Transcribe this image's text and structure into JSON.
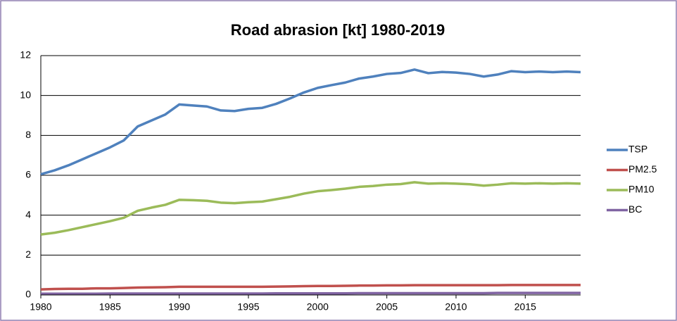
{
  "chart_data": {
    "type": "line",
    "title": "Road abrasion  [kt] 1980-2019",
    "x": [
      1980,
      1981,
      1982,
      1983,
      1984,
      1985,
      1986,
      1987,
      1988,
      1989,
      1990,
      1991,
      1992,
      1993,
      1994,
      1995,
      1996,
      1997,
      1998,
      1999,
      2000,
      2001,
      2002,
      2003,
      2004,
      2005,
      2006,
      2007,
      2008,
      2009,
      2010,
      2011,
      2012,
      2013,
      2014,
      2015,
      2016,
      2017,
      2018,
      2019
    ],
    "series": [
      {
        "name": "TSP",
        "color": "#4f81bd",
        "values": [
          6.05,
          6.25,
          6.5,
          6.8,
          7.1,
          7.4,
          7.75,
          8.45,
          8.75,
          9.05,
          9.55,
          9.5,
          9.45,
          9.25,
          9.22,
          9.33,
          9.38,
          9.58,
          9.85,
          10.15,
          10.38,
          10.52,
          10.65,
          10.85,
          10.95,
          11.08,
          11.13,
          11.3,
          11.12,
          11.18,
          11.15,
          11.08,
          10.95,
          11.05,
          11.22,
          11.17,
          11.2,
          11.17,
          11.2,
          11.17
        ]
      },
      {
        "name": "PM2.5",
        "color": "#c0504d",
        "values": [
          0.28,
          0.3,
          0.31,
          0.31,
          0.33,
          0.33,
          0.35,
          0.37,
          0.38,
          0.39,
          0.41,
          0.41,
          0.41,
          0.41,
          0.41,
          0.41,
          0.41,
          0.42,
          0.43,
          0.44,
          0.45,
          0.45,
          0.46,
          0.47,
          0.47,
          0.48,
          0.48,
          0.49,
          0.49,
          0.49,
          0.49,
          0.49,
          0.49,
          0.49,
          0.5,
          0.5,
          0.5,
          0.5,
          0.5,
          0.5
        ]
      },
      {
        "name": "PM10",
        "color": "#9bbb59",
        "values": [
          3.03,
          3.12,
          3.25,
          3.4,
          3.55,
          3.7,
          3.87,
          4.22,
          4.38,
          4.52,
          4.77,
          4.75,
          4.72,
          4.63,
          4.6,
          4.65,
          4.68,
          4.8,
          4.92,
          5.08,
          5.2,
          5.26,
          5.33,
          5.42,
          5.46,
          5.53,
          5.56,
          5.65,
          5.58,
          5.6,
          5.58,
          5.55,
          5.48,
          5.53,
          5.6,
          5.58,
          5.6,
          5.58,
          5.6,
          5.58
        ]
      },
      {
        "name": "BC",
        "color": "#8064a2",
        "values": [
          0.06,
          0.06,
          0.06,
          0.06,
          0.06,
          0.07,
          0.07,
          0.07,
          0.07,
          0.07,
          0.07,
          0.07,
          0.07,
          0.07,
          0.07,
          0.07,
          0.07,
          0.08,
          0.08,
          0.08,
          0.08,
          0.08,
          0.08,
          0.09,
          0.09,
          0.09,
          0.09,
          0.09,
          0.09,
          0.09,
          0.09,
          0.09,
          0.09,
          0.1,
          0.1,
          0.1,
          0.1,
          0.1,
          0.1,
          0.1
        ]
      }
    ],
    "xlim": [
      1980,
      2019
    ],
    "xticks": [
      1980,
      1985,
      1990,
      1995,
      2000,
      2005,
      2010,
      2015
    ],
    "ylim": [
      0,
      12
    ],
    "yticks": [
      0,
      2,
      4,
      6,
      8,
      10,
      12
    ],
    "grid": true,
    "legend": "right"
  }
}
